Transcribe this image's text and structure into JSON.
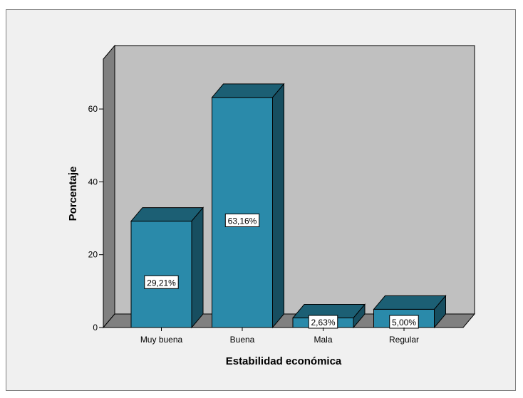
{
  "chart_data": {
    "type": "bar",
    "categories": [
      "Muy buena",
      "Buena",
      "Mala",
      "Regular"
    ],
    "values": [
      29.21,
      63.16,
      2.63,
      5.0
    ],
    "data_labels": [
      "29,21%",
      "63,16%",
      "2,63%",
      "5,00%"
    ],
    "xlabel": "Estabilidad económica",
    "ylabel": "Porcentaje",
    "ylim": [
      0,
      75
    ],
    "yticks": [
      "0",
      "20",
      "40",
      "60"
    ],
    "ytick_values": [
      0,
      20,
      40,
      60
    ],
    "grid": false,
    "three_d": true,
    "colors": {
      "bar_front": "#2a8aaa",
      "bar_top": "#1c5f74",
      "bar_side": "#174e60",
      "plot_back": "#c0c0c0",
      "plot_side": "#808080",
      "plot_floor": "#808080"
    }
  }
}
